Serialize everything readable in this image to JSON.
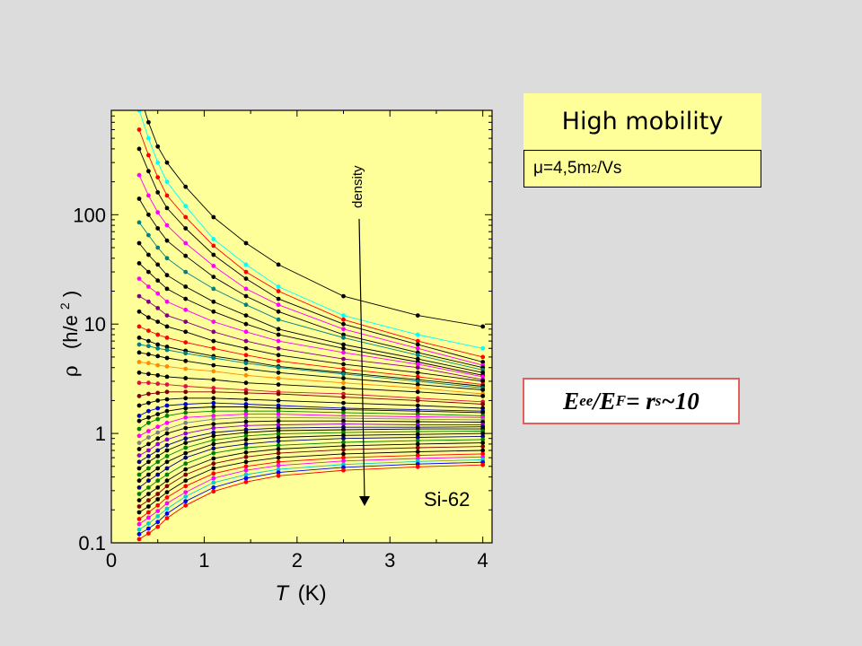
{
  "header": {
    "title": "High mobility",
    "mobility": {
      "symbol": "μ",
      "text": "=4,5m",
      "sup": "2",
      "tail": "/Vs"
    }
  },
  "equation": {
    "e": "E",
    "ee": "ee",
    "slash": "/E",
    "f": "F",
    "eq": "= r",
    "s": "s",
    "tail": "~10"
  },
  "chart_data": {
    "type": "line",
    "xlabel_italic": "T",
    "xlabel_unit": "(K)",
    "ylabel_symbol": "ρ",
    "ylabel_unit": "(h/e",
    "ylabel_sup": "2",
    "ylabel_close": ")",
    "sample_label": "Si-62",
    "arrow_label": "density",
    "x_ticks": [
      "0",
      "1",
      "2",
      "3",
      "4"
    ],
    "y_ticks": [
      "0.1",
      "1",
      "10",
      "100"
    ],
    "xlim": [
      0,
      4.1
    ],
    "ylim": [
      0.1,
      900
    ],
    "y_scale": "log",
    "background": "#ffff99",
    "x": [
      0.3,
      0.4,
      0.5,
      0.6,
      0.8,
      1.1,
      1.45,
      1.8,
      2.5,
      3.3,
      4.0
    ],
    "series": [
      {
        "color": "#000000",
        "values": [
          1300,
          700,
          420,
          300,
          180,
          95,
          55,
          35,
          18,
          12,
          9.5
        ]
      },
      {
        "color": "#00ffff",
        "values": [
          900,
          500,
          300,
          200,
          120,
          60,
          35,
          22,
          12,
          8,
          6
        ]
      },
      {
        "color": "#ff0000",
        "values": [
          600,
          350,
          220,
          150,
          95,
          52,
          30,
          20,
          11,
          7,
          5
        ]
      },
      {
        "color": "#000000",
        "values": [
          400,
          250,
          160,
          115,
          75,
          43,
          26,
          17,
          10,
          6.5,
          4.5
        ]
      },
      {
        "color": "#ff00ff",
        "values": [
          230,
          150,
          105,
          80,
          55,
          34,
          21,
          15,
          9,
          6,
          4.2
        ]
      },
      {
        "color": "#000000",
        "values": [
          140,
          100,
          75,
          58,
          42,
          27,
          18,
          13,
          8,
          5.5,
          4.0
        ]
      },
      {
        "color": "#008080",
        "values": [
          85,
          65,
          50,
          40,
          30,
          21,
          15,
          11,
          7.5,
          5.2,
          3.8
        ]
      },
      {
        "color": "#000000",
        "values": [
          55,
          43,
          35,
          28,
          22,
          16,
          12,
          9,
          6.5,
          4.8,
          3.6
        ]
      },
      {
        "color": "#000000",
        "values": [
          36,
          30,
          25,
          21,
          17,
          13,
          10,
          8,
          6,
          4.5,
          3.4
        ]
      },
      {
        "color": "#ff00ff",
        "values": [
          26,
          22,
          19,
          16,
          13.5,
          10.5,
          8.5,
          7,
          5.5,
          4.3,
          3.3
        ]
      },
      {
        "color": "#800080",
        "values": [
          18,
          16,
          14,
          12,
          10.5,
          8.5,
          7,
          6,
          4.8,
          4,
          3.1
        ]
      },
      {
        "color": "#000000",
        "values": [
          13,
          11.5,
          10.5,
          9.5,
          8.5,
          7,
          6,
          5.2,
          4.3,
          3.6,
          3.0
        ]
      },
      {
        "color": "#ff0000",
        "values": [
          9.5,
          8.7,
          8,
          7.5,
          6.8,
          6,
          5.2,
          4.6,
          3.9,
          3.3,
          2.8
        ]
      },
      {
        "color": "#000000",
        "values": [
          7.5,
          7,
          6.5,
          6.2,
          5.7,
          5.1,
          4.6,
          4.1,
          3.6,
          3.1,
          2.7
        ]
      },
      {
        "color": "#008080",
        "values": [
          6.5,
          6.3,
          6,
          5.8,
          5.4,
          4.9,
          4.4,
          4.0,
          3.5,
          3.0,
          2.6
        ]
      },
      {
        "color": "#000000",
        "values": [
          5.5,
          5.3,
          5.1,
          4.9,
          4.6,
          4.2,
          3.9,
          3.6,
          3.2,
          2.8,
          2.5
        ]
      },
      {
        "color": "#ff8c00",
        "values": [
          4.5,
          4.4,
          4.2,
          4.1,
          3.9,
          3.7,
          3.4,
          3.2,
          2.9,
          2.6,
          2.3
        ]
      },
      {
        "color": "#000000",
        "values": [
          3.6,
          3.5,
          3.4,
          3.3,
          3.2,
          3.1,
          2.9,
          2.8,
          2.6,
          2.4,
          2.2
        ]
      },
      {
        "color": "#dc143c",
        "values": [
          2.9,
          2.9,
          2.85,
          2.8,
          2.7,
          2.6,
          2.5,
          2.4,
          2.3,
          2.1,
          1.95
        ]
      },
      {
        "color": "#800000",
        "values": [
          2.2,
          2.3,
          2.35,
          2.4,
          2.4,
          2.4,
          2.35,
          2.3,
          2.15,
          2.0,
          1.85
        ]
      },
      {
        "color": "#000000",
        "values": [
          1.8,
          1.9,
          2.0,
          2.05,
          2.1,
          2.1,
          2.05,
          2.0,
          1.9,
          1.8,
          1.7
        ]
      },
      {
        "color": "#0000cd",
        "values": [
          1.45,
          1.6,
          1.7,
          1.8,
          1.85,
          1.9,
          1.85,
          1.8,
          1.7,
          1.65,
          1.6
        ]
      },
      {
        "color": "#000000",
        "values": [
          1.3,
          1.4,
          1.5,
          1.6,
          1.7,
          1.75,
          1.75,
          1.7,
          1.65,
          1.6,
          1.55
        ]
      },
      {
        "color": "#008000",
        "values": [
          1.1,
          1.25,
          1.35,
          1.45,
          1.55,
          1.6,
          1.6,
          1.6,
          1.55,
          1.5,
          1.45
        ]
      },
      {
        "color": "#ff00ff",
        "values": [
          0.95,
          1.05,
          1.15,
          1.25,
          1.4,
          1.45,
          1.5,
          1.5,
          1.45,
          1.42,
          1.4
        ]
      },
      {
        "color": "#808080",
        "values": [
          0.82,
          0.92,
          1.02,
          1.1,
          1.25,
          1.35,
          1.4,
          1.4,
          1.38,
          1.35,
          1.33
        ]
      },
      {
        "color": "#000000",
        "values": [
          0.72,
          0.8,
          0.9,
          1.0,
          1.12,
          1.22,
          1.28,
          1.3,
          1.3,
          1.28,
          1.27
        ]
      },
      {
        "color": "#9400d3",
        "values": [
          0.63,
          0.7,
          0.8,
          0.88,
          1.0,
          1.12,
          1.18,
          1.2,
          1.22,
          1.2,
          1.2
        ]
      },
      {
        "color": "#000080",
        "values": [
          0.55,
          0.62,
          0.7,
          0.78,
          0.9,
          1.02,
          1.08,
          1.12,
          1.14,
          1.14,
          1.15
        ]
      },
      {
        "color": "#000000",
        "values": [
          0.48,
          0.55,
          0.62,
          0.7,
          0.82,
          0.95,
          1.02,
          1.06,
          1.08,
          1.1,
          1.1
        ]
      },
      {
        "color": "#008000",
        "values": [
          0.42,
          0.48,
          0.55,
          0.62,
          0.74,
          0.87,
          0.95,
          0.99,
          1.02,
          1.04,
          1.05
        ]
      },
      {
        "color": "#000000",
        "values": [
          0.37,
          0.42,
          0.48,
          0.55,
          0.66,
          0.8,
          0.88,
          0.92,
          0.96,
          0.98,
          1.0
        ]
      },
      {
        "color": "#000080",
        "values": [
          0.32,
          0.37,
          0.42,
          0.48,
          0.6,
          0.73,
          0.8,
          0.85,
          0.9,
          0.92,
          0.94
        ]
      },
      {
        "color": "#008000",
        "values": [
          0.28,
          0.32,
          0.37,
          0.42,
          0.53,
          0.66,
          0.74,
          0.78,
          0.83,
          0.86,
          0.88
        ]
      },
      {
        "color": "#000000",
        "values": [
          0.245,
          0.28,
          0.32,
          0.37,
          0.47,
          0.59,
          0.67,
          0.72,
          0.77,
          0.8,
          0.82
        ]
      },
      {
        "color": "#800000",
        "values": [
          0.215,
          0.245,
          0.28,
          0.33,
          0.42,
          0.53,
          0.61,
          0.66,
          0.71,
          0.74,
          0.76
        ]
      },
      {
        "color": "#000000",
        "values": [
          0.19,
          0.215,
          0.25,
          0.29,
          0.37,
          0.48,
          0.55,
          0.6,
          0.65,
          0.68,
          0.7
        ]
      },
      {
        "color": "#ff0000",
        "values": [
          0.165,
          0.19,
          0.22,
          0.26,
          0.33,
          0.43,
          0.5,
          0.55,
          0.6,
          0.63,
          0.65
        ]
      },
      {
        "color": "#ff00ff",
        "values": [
          0.148,
          0.17,
          0.195,
          0.23,
          0.29,
          0.39,
          0.46,
          0.51,
          0.56,
          0.59,
          0.61
        ]
      },
      {
        "color": "#00ced1",
        "values": [
          0.132,
          0.15,
          0.175,
          0.205,
          0.265,
          0.355,
          0.42,
          0.47,
          0.52,
          0.555,
          0.575
        ]
      },
      {
        "color": "#0000ff",
        "values": [
          0.12,
          0.135,
          0.155,
          0.185,
          0.24,
          0.32,
          0.39,
          0.44,
          0.49,
          0.525,
          0.545
        ]
      },
      {
        "color": "#ff0000",
        "values": [
          0.108,
          0.122,
          0.14,
          0.168,
          0.22,
          0.295,
          0.36,
          0.41,
          0.46,
          0.495,
          0.515
        ]
      }
    ]
  }
}
